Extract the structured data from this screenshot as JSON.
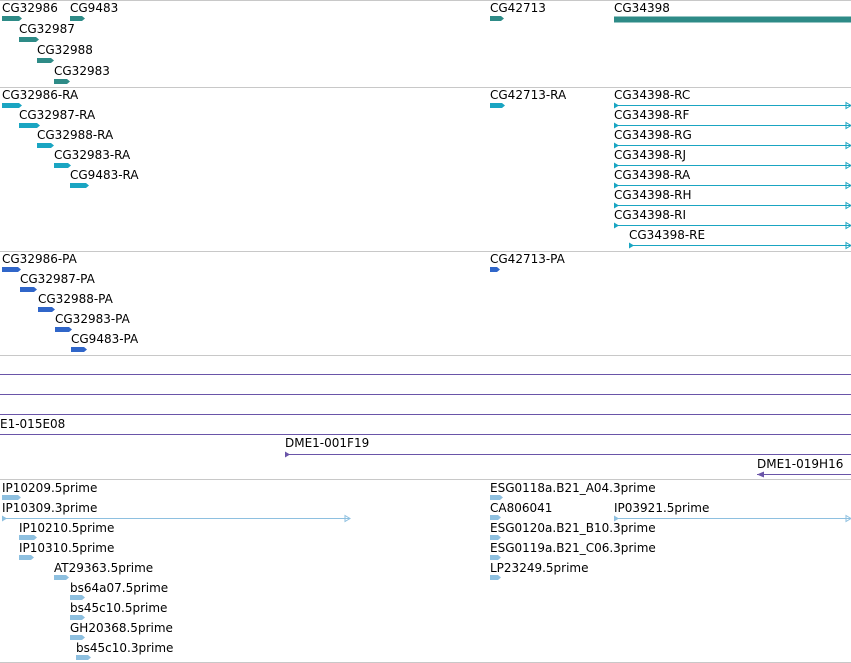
{
  "colors": {
    "gene": "#2e8b87",
    "transcript": "#1aa5c2",
    "protein": "#3066c9",
    "clone": "#6a55a8",
    "est": "#8ec0e0",
    "separator": "#c8c8c8"
  },
  "tracks": [
    {
      "name": "genes",
      "color_key": "gene",
      "features": [
        {
          "label": "CG32986",
          "strand": "+",
          "shape": "arrow"
        },
        {
          "label": "CG9483",
          "strand": "+",
          "shape": "arrow"
        },
        {
          "label": "CG32987",
          "strand": "+",
          "shape": "arrow"
        },
        {
          "label": "CG32988",
          "strand": "+",
          "shape": "arrow"
        },
        {
          "label": "CG32983",
          "strand": "+",
          "shape": "arrow"
        },
        {
          "label": "CG42713",
          "strand": "+",
          "shape": "arrow"
        },
        {
          "label": "CG34398",
          "strand": "+",
          "shape": "bar"
        }
      ]
    },
    {
      "name": "transcripts",
      "color_key": "transcript",
      "features": [
        {
          "label": "CG32986-RA",
          "strand": "+",
          "shape": "arrow"
        },
        {
          "label": "CG32987-RA",
          "strand": "+",
          "shape": "arrow"
        },
        {
          "label": "CG32988-RA",
          "strand": "+",
          "shape": "arrow"
        },
        {
          "label": "CG32983-RA",
          "strand": "+",
          "shape": "arrow"
        },
        {
          "label": "CG9483-RA",
          "strand": "+",
          "shape": "arrow"
        },
        {
          "label": "CG42713-RA",
          "strand": "+",
          "shape": "arrow"
        },
        {
          "label": "CG34398-RC",
          "strand": "+",
          "shape": "line"
        },
        {
          "label": "CG34398-RF",
          "strand": "+",
          "shape": "line"
        },
        {
          "label": "CG34398-RG",
          "strand": "+",
          "shape": "line"
        },
        {
          "label": "CG34398-RJ",
          "strand": "+",
          "shape": "line"
        },
        {
          "label": "CG34398-RA",
          "strand": "+",
          "shape": "line"
        },
        {
          "label": "CG34398-RH",
          "strand": "+",
          "shape": "line"
        },
        {
          "label": "CG34398-RI",
          "strand": "+",
          "shape": "line"
        },
        {
          "label": "CG34398-RE",
          "strand": "+",
          "shape": "line"
        }
      ]
    },
    {
      "name": "proteins",
      "color_key": "protein",
      "features": [
        {
          "label": "CG32986-PA",
          "strand": "+",
          "shape": "arrow"
        },
        {
          "label": "CG32987-PA",
          "strand": "+",
          "shape": "arrow"
        },
        {
          "label": "CG32988-PA",
          "strand": "+",
          "shape": "arrow"
        },
        {
          "label": "CG32983-PA",
          "strand": "+",
          "shape": "arrow"
        },
        {
          "label": "CG9483-PA",
          "strand": "+",
          "shape": "arrow"
        },
        {
          "label": "CG42713-PA",
          "strand": "+",
          "shape": "arrow"
        }
      ]
    },
    {
      "name": "clones",
      "color_key": "clone",
      "features": [
        {
          "label": "",
          "strand": "",
          "shape": "line"
        },
        {
          "label": "",
          "strand": "",
          "shape": "line"
        },
        {
          "label": "",
          "strand": "",
          "shape": "line"
        },
        {
          "label": "E1-015E08",
          "strand": "",
          "shape": "line"
        },
        {
          "label": "DME1-001F19",
          "strand": "+",
          "shape": "line"
        },
        {
          "label": "DME1-019H16",
          "strand": "-",
          "shape": "line"
        }
      ]
    },
    {
      "name": "ests",
      "color_key": "est",
      "features": [
        {
          "label": "IP10209.5prime",
          "strand": "+",
          "shape": "arrow"
        },
        {
          "label": "IP10309.3prime",
          "strand": "+",
          "shape": "line"
        },
        {
          "label": "IP10210.5prime",
          "strand": "+",
          "shape": "arrow"
        },
        {
          "label": "IP10310.5prime",
          "strand": "+",
          "shape": "arrow"
        },
        {
          "label": "AT29363.5prime",
          "strand": "+",
          "shape": "arrow"
        },
        {
          "label": "bs64a07.5prime",
          "strand": "+",
          "shape": "arrow"
        },
        {
          "label": "bs45c10.5prime",
          "strand": "+",
          "shape": "arrow"
        },
        {
          "label": "GH20368.5prime",
          "strand": "+",
          "shape": "arrow"
        },
        {
          "label": "bs45c10.3prime",
          "strand": "+",
          "shape": "arrow"
        },
        {
          "label": "ESG0118a.B21_A04.3prime",
          "strand": "+",
          "shape": "arrow"
        },
        {
          "label": "CA806041",
          "strand": "+",
          "shape": "arrow"
        },
        {
          "label": "IP03921.5prime",
          "strand": "+",
          "shape": "line"
        },
        {
          "label": "ESG0120a.B21_B10.3prime",
          "strand": "+",
          "shape": "arrow"
        },
        {
          "label": "ESG0119a.B21_C06.3prime",
          "strand": "+",
          "shape": "arrow"
        },
        {
          "label": "LP23249.5prime",
          "strand": "+",
          "shape": "arrow"
        }
      ]
    }
  ]
}
